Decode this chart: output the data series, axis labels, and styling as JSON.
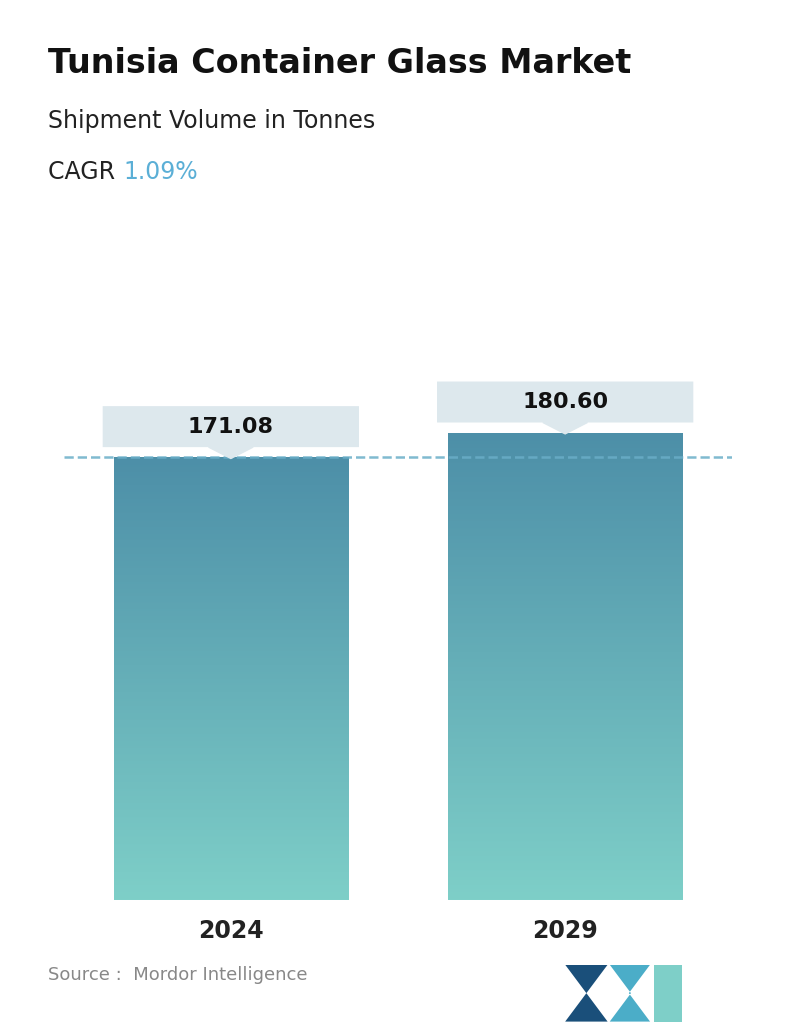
{
  "title": "Tunisia Container Glass Market",
  "subtitle": "Shipment Volume in Tonnes",
  "cagr_label": "CAGR  ",
  "cagr_value": "1.09%",
  "cagr_color": "#5bafd6",
  "categories": [
    "2024",
    "2029"
  ],
  "values": [
    171.08,
    180.6
  ],
  "bar_top_color": "#4d8fa8",
  "bar_bottom_color": "#7ecfc8",
  "dashed_line_color": "#6aaec8",
  "dashed_line_y": 171.08,
  "annotation_bg_color": "#dde8ed",
  "annotation_text_color": "#111111",
  "source_text": "Source :  Mordor Intelligence",
  "source_color": "#888888",
  "background_color": "#ffffff",
  "ylim": [
    0,
    220
  ],
  "bar_width": 0.42,
  "title_fontsize": 24,
  "subtitle_fontsize": 17,
  "cagr_fontsize": 17,
  "xlabel_fontsize": 17,
  "annotation_fontsize": 16
}
